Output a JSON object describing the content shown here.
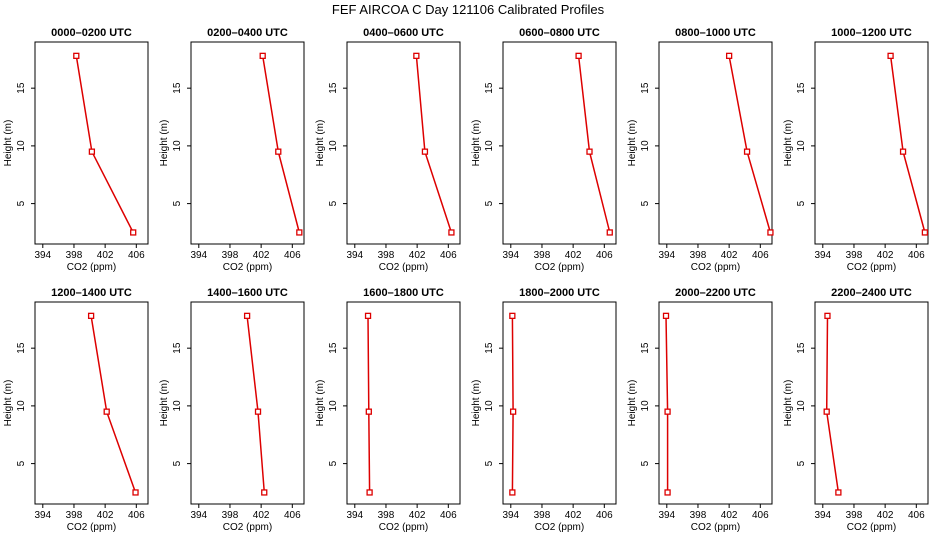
{
  "figure_title": "FEF AIRCOA C  Day 121106  Calibrated Profiles",
  "colors": {
    "series": "#dd0000",
    "axis": "#000000",
    "background": "#ffffff"
  },
  "chart_data": [
    {
      "type": "line",
      "title": "0000–0200 UTC",
      "xlabel": "CO2 (ppm)",
      "ylabel": "Height (m)",
      "xlim": [
        393,
        407.5
      ],
      "ylim": [
        1.5,
        19
      ],
      "xticks": [
        394,
        398,
        402,
        406
      ],
      "yticks": [
        5,
        10,
        15
      ],
      "x": [
        398.3,
        400.3,
        405.6
      ],
      "y": [
        17.8,
        9.5,
        2.5
      ]
    },
    {
      "type": "line",
      "title": "0200–0400 UTC",
      "xlabel": "CO2 (ppm)",
      "ylabel": "Height (m)",
      "xlim": [
        393,
        407.5
      ],
      "ylim": [
        1.5,
        19
      ],
      "xticks": [
        394,
        398,
        402,
        406
      ],
      "yticks": [
        5,
        10,
        15
      ],
      "x": [
        402.2,
        404.2,
        406.9
      ],
      "y": [
        17.8,
        9.5,
        2.5
      ]
    },
    {
      "type": "line",
      "title": "0400–0600 UTC",
      "xlabel": "CO2 (ppm)",
      "ylabel": "Height (m)",
      "xlim": [
        393,
        407.5
      ],
      "ylim": [
        1.5,
        19
      ],
      "xticks": [
        394,
        398,
        402,
        406
      ],
      "yticks": [
        5,
        10,
        15
      ],
      "x": [
        401.9,
        403.0,
        406.4
      ],
      "y": [
        17.8,
        9.5,
        2.5
      ]
    },
    {
      "type": "line",
      "title": "0600–0800 UTC",
      "xlabel": "CO2 (ppm)",
      "ylabel": "Height (m)",
      "xlim": [
        393,
        407.5
      ],
      "ylim": [
        1.5,
        19
      ],
      "xticks": [
        394,
        398,
        402,
        406
      ],
      "yticks": [
        5,
        10,
        15
      ],
      "x": [
        402.7,
        404.1,
        406.7
      ],
      "y": [
        17.8,
        9.5,
        2.5
      ]
    },
    {
      "type": "line",
      "title": "0800–1000 UTC",
      "xlabel": "CO2 (ppm)",
      "ylabel": "Height (m)",
      "xlim": [
        393,
        407.5
      ],
      "ylim": [
        1.5,
        19
      ],
      "xticks": [
        394,
        398,
        402,
        406
      ],
      "yticks": [
        5,
        10,
        15
      ],
      "x": [
        402.0,
        404.3,
        407.3
      ],
      "y": [
        17.8,
        9.5,
        2.5
      ]
    },
    {
      "type": "line",
      "title": "1000–1200 UTC",
      "xlabel": "CO2 (ppm)",
      "ylabel": "Height (m)",
      "xlim": [
        393,
        407.5
      ],
      "ylim": [
        1.5,
        19
      ],
      "xticks": [
        394,
        398,
        402,
        406
      ],
      "yticks": [
        5,
        10,
        15
      ],
      "x": [
        402.7,
        404.3,
        407.1
      ],
      "y": [
        17.8,
        9.5,
        2.5
      ]
    },
    {
      "type": "line",
      "title": "1200–1400 UTC",
      "xlabel": "CO2 (ppm)",
      "ylabel": "Height (m)",
      "xlim": [
        393,
        407.5
      ],
      "ylim": [
        1.5,
        19
      ],
      "xticks": [
        394,
        398,
        402,
        406
      ],
      "yticks": [
        5,
        10,
        15
      ],
      "x": [
        400.2,
        402.2,
        405.9
      ],
      "y": [
        17.8,
        9.5,
        2.5
      ]
    },
    {
      "type": "line",
      "title": "1400–1600 UTC",
      "xlabel": "CO2 (ppm)",
      "ylabel": "Height (m)",
      "xlim": [
        393,
        407.5
      ],
      "ylim": [
        1.5,
        19
      ],
      "xticks": [
        394,
        398,
        402,
        406
      ],
      "yticks": [
        5,
        10,
        15
      ],
      "x": [
        400.2,
        401.6,
        402.4
      ],
      "y": [
        17.8,
        9.5,
        2.5
      ]
    },
    {
      "type": "line",
      "title": "1600–1800 UTC",
      "xlabel": "CO2 (ppm)",
      "ylabel": "Height (m)",
      "xlim": [
        393,
        407.5
      ],
      "ylim": [
        1.5,
        19
      ],
      "xticks": [
        394,
        398,
        402,
        406
      ],
      "yticks": [
        5,
        10,
        15
      ],
      "x": [
        395.7,
        395.8,
        395.9
      ],
      "y": [
        17.8,
        9.5,
        2.5
      ]
    },
    {
      "type": "line",
      "title": "1800–2000 UTC",
      "xlabel": "CO2 (ppm)",
      "ylabel": "Height (m)",
      "xlim": [
        393,
        407.5
      ],
      "ylim": [
        1.5,
        19
      ],
      "xticks": [
        394,
        398,
        402,
        406
      ],
      "yticks": [
        5,
        10,
        15
      ],
      "x": [
        394.2,
        394.3,
        394.2
      ],
      "y": [
        17.8,
        9.5,
        2.5
      ]
    },
    {
      "type": "line",
      "title": "2000–2200 UTC",
      "xlabel": "CO2 (ppm)",
      "ylabel": "Height (m)",
      "xlim": [
        393,
        407.5
      ],
      "ylim": [
        1.5,
        19
      ],
      "xticks": [
        394,
        398,
        402,
        406
      ],
      "yticks": [
        5,
        10,
        15
      ],
      "x": [
        393.9,
        394.1,
        394.1
      ],
      "y": [
        17.8,
        9.5,
        2.5
      ]
    },
    {
      "type": "line",
      "title": "2200–2400 UTC",
      "xlabel": "CO2 (ppm)",
      "ylabel": "Height (m)",
      "xlim": [
        393,
        407.5
      ],
      "ylim": [
        1.5,
        19
      ],
      "xticks": [
        394,
        398,
        402,
        406
      ],
      "yticks": [
        5,
        10,
        15
      ],
      "x": [
        394.6,
        394.5,
        396.0
      ],
      "y": [
        17.8,
        9.5,
        2.5
      ]
    }
  ]
}
